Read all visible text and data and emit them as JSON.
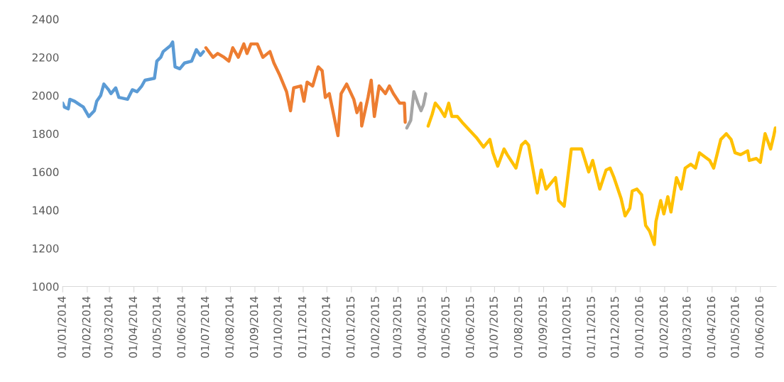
{
  "chart_data": {
    "type": "line",
    "xlim": [
      "2014-01-01",
      "2016-06-21"
    ],
    "ylim": [
      1000,
      2400
    ],
    "yticks": [
      1000,
      1200,
      1400,
      1600,
      1800,
      2000,
      2200,
      2400
    ],
    "xticks": [
      {
        "value": "2014-01-01",
        "label": "01/01/2014"
      },
      {
        "value": "2014-02-01",
        "label": "01/02/2014"
      },
      {
        "value": "2014-03-01",
        "label": "01/03/2014"
      },
      {
        "value": "2014-04-01",
        "label": "01/04/2014"
      },
      {
        "value": "2014-05-01",
        "label": "01/05/2014"
      },
      {
        "value": "2014-06-01",
        "label": "01/06/2014"
      },
      {
        "value": "2014-07-01",
        "label": "01/07/2014"
      },
      {
        "value": "2014-08-01",
        "label": "01/08/2014"
      },
      {
        "value": "2014-09-01",
        "label": "01/09/2014"
      },
      {
        "value": "2014-10-01",
        "label": "01/10/2014"
      },
      {
        "value": "2014-11-01",
        "label": "01/11/2014"
      },
      {
        "value": "2014-12-01",
        "label": "01/12/2014"
      },
      {
        "value": "2015-01-01",
        "label": "01/01/2015"
      },
      {
        "value": "2015-02-01",
        "label": "01/02/2015"
      },
      {
        "value": "2015-03-01",
        "label": "01/03/2015"
      },
      {
        "value": "2015-04-01",
        "label": "01/04/2015"
      },
      {
        "value": "2015-05-01",
        "label": "01/05/2015"
      },
      {
        "value": "2015-06-01",
        "label": "01/06/2015"
      },
      {
        "value": "2015-07-01",
        "label": "01/07/2015"
      },
      {
        "value": "2015-08-01",
        "label": "01/08/2015"
      },
      {
        "value": "2015-09-01",
        "label": "01/09/2015"
      },
      {
        "value": "2015-10-01",
        "label": "01/10/2015"
      },
      {
        "value": "2015-11-01",
        "label": "01/11/2015"
      },
      {
        "value": "2015-12-01",
        "label": "01/12/2015"
      },
      {
        "value": "2016-01-01",
        "label": "01/01/2016"
      },
      {
        "value": "2016-02-01",
        "label": "01/02/2016"
      },
      {
        "value": "2016-03-01",
        "label": "01/03/2016"
      },
      {
        "value": "2016-04-01",
        "label": "01/04/2016"
      },
      {
        "value": "2016-05-01",
        "label": "01/05/2016"
      },
      {
        "value": "2016-06-01",
        "label": "01/06/2016"
      }
    ],
    "grid": false,
    "legend": false,
    "line_style": "solid",
    "marker": "none",
    "series": [
      {
        "color": "#5b9bd5",
        "x": [
          "2014-01-01",
          "2014-01-03",
          "2014-01-08",
          "2014-01-10",
          "2014-01-16",
          "2014-01-23",
          "2014-01-27",
          "2014-02-03",
          "2014-02-10",
          "2014-02-13",
          "2014-02-18",
          "2014-02-22",
          "2014-02-28",
          "2014-03-03",
          "2014-03-09",
          "2014-03-13",
          "2014-03-24",
          "2014-03-30",
          "2014-04-05",
          "2014-04-11",
          "2014-04-15",
          "2014-04-27",
          "2014-04-30",
          "2014-05-05",
          "2014-05-08",
          "2014-05-17",
          "2014-05-20",
          "2014-05-23",
          "2014-05-29",
          "2014-06-04",
          "2014-06-13",
          "2014-06-19",
          "2014-06-24",
          "2014-06-28"
        ],
        "values": [
          1960,
          1940,
          1930,
          1980,
          1970,
          1950,
          1940,
          1890,
          1920,
          1970,
          2000,
          2060,
          2030,
          2010,
          2040,
          1990,
          1980,
          2030,
          2020,
          2050,
          2080,
          2090,
          2180,
          2200,
          2230,
          2260,
          2280,
          2150,
          2140,
          2170,
          2180,
          2240,
          2210,
          2230
        ]
      },
      {
        "color": "#ed7d31",
        "x": [
          "2014-07-01",
          "2014-07-10",
          "2014-07-16",
          "2014-07-24",
          "2014-07-30",
          "2014-08-04",
          "2014-08-11",
          "2014-08-18",
          "2014-08-22",
          "2014-08-27",
          "2014-09-04",
          "2014-09-11",
          "2014-09-20",
          "2014-09-25",
          "2014-10-02",
          "2014-10-11",
          "2014-10-16",
          "2014-10-20",
          "2014-10-29",
          "2014-11-02",
          "2014-11-06",
          "2014-11-13",
          "2014-11-20",
          "2014-11-25",
          "2014-11-29",
          "2014-12-04",
          "2014-12-15",
          "2014-12-19",
          "2014-12-26",
          "2015-01-04",
          "2015-01-08",
          "2015-01-13",
          "2015-01-14",
          "2015-01-22",
          "2015-01-26",
          "2015-01-30",
          "2015-02-05",
          "2015-02-13",
          "2015-02-18",
          "2015-02-23",
          "2015-03-03",
          "2015-03-09",
          "2015-03-10"
        ],
        "values": [
          2250,
          2200,
          2220,
          2200,
          2180,
          2250,
          2200,
          2270,
          2220,
          2270,
          2270,
          2200,
          2230,
          2170,
          2110,
          2020,
          1920,
          2040,
          2050,
          1970,
          2070,
          2050,
          2150,
          2130,
          1990,
          2010,
          1790,
          2010,
          2060,
          1980,
          1910,
          1960,
          1840,
          1990,
          2080,
          1890,
          2050,
          2010,
          2050,
          2010,
          1960,
          1960,
          1860
        ]
      },
      {
        "color": "#a5a5a5",
        "x": [
          "2015-03-12",
          "2015-03-17",
          "2015-03-21",
          "2015-03-26",
          "2015-03-30",
          "2015-04-02",
          "2015-04-05"
        ],
        "values": [
          1830,
          1870,
          2020,
          1960,
          1920,
          1950,
          2010
        ]
      },
      {
        "color": "#ffc000",
        "x": [
          "2015-04-08",
          "2015-04-13",
          "2015-04-17",
          "2015-04-23",
          "2015-04-29",
          "2015-05-04",
          "2015-05-08",
          "2015-05-15",
          "2015-05-21",
          "2015-05-30",
          "2015-06-08",
          "2015-06-17",
          "2015-06-25",
          "2015-06-29",
          "2015-07-05",
          "2015-07-13",
          "2015-07-17",
          "2015-07-28",
          "2015-08-04",
          "2015-08-09",
          "2015-08-13",
          "2015-08-24",
          "2015-08-29",
          "2015-09-04",
          "2015-09-16",
          "2015-09-20",
          "2015-09-27",
          "2015-10-06",
          "2015-10-19",
          "2015-10-28",
          "2015-11-02",
          "2015-11-11",
          "2015-11-19",
          "2015-11-24",
          "2015-11-29",
          "2015-12-08",
          "2015-12-13",
          "2015-12-19",
          "2015-12-22",
          "2015-12-28",
          "2016-01-03",
          "2016-01-08",
          "2016-01-13",
          "2016-01-19",
          "2016-01-21",
          "2016-01-27",
          "2016-01-31",
          "2016-02-05",
          "2016-02-09",
          "2016-02-16",
          "2016-02-22",
          "2016-02-27",
          "2016-03-05",
          "2016-03-11",
          "2016-03-16",
          "2016-03-29",
          "2016-04-03",
          "2016-04-12",
          "2016-04-19",
          "2016-04-25",
          "2016-04-30",
          "2016-05-07",
          "2016-05-16",
          "2016-05-18",
          "2016-05-27",
          "2016-06-01",
          "2016-06-07",
          "2016-06-14",
          "2016-06-18",
          "2016-06-20"
        ],
        "values": [
          1840,
          1900,
          1960,
          1930,
          1890,
          1960,
          1890,
          1890,
          1860,
          1820,
          1780,
          1730,
          1770,
          1700,
          1630,
          1720,
          1690,
          1620,
          1740,
          1760,
          1740,
          1490,
          1610,
          1510,
          1570,
          1450,
          1420,
          1720,
          1720,
          1600,
          1660,
          1510,
          1610,
          1620,
          1570,
          1460,
          1370,
          1410,
          1500,
          1510,
          1480,
          1320,
          1290,
          1220,
          1340,
          1450,
          1380,
          1470,
          1390,
          1570,
          1510,
          1620,
          1640,
          1620,
          1700,
          1660,
          1620,
          1770,
          1800,
          1770,
          1700,
          1690,
          1710,
          1660,
          1670,
          1650,
          1800,
          1720,
          1790,
          1830
        ]
      }
    ]
  }
}
